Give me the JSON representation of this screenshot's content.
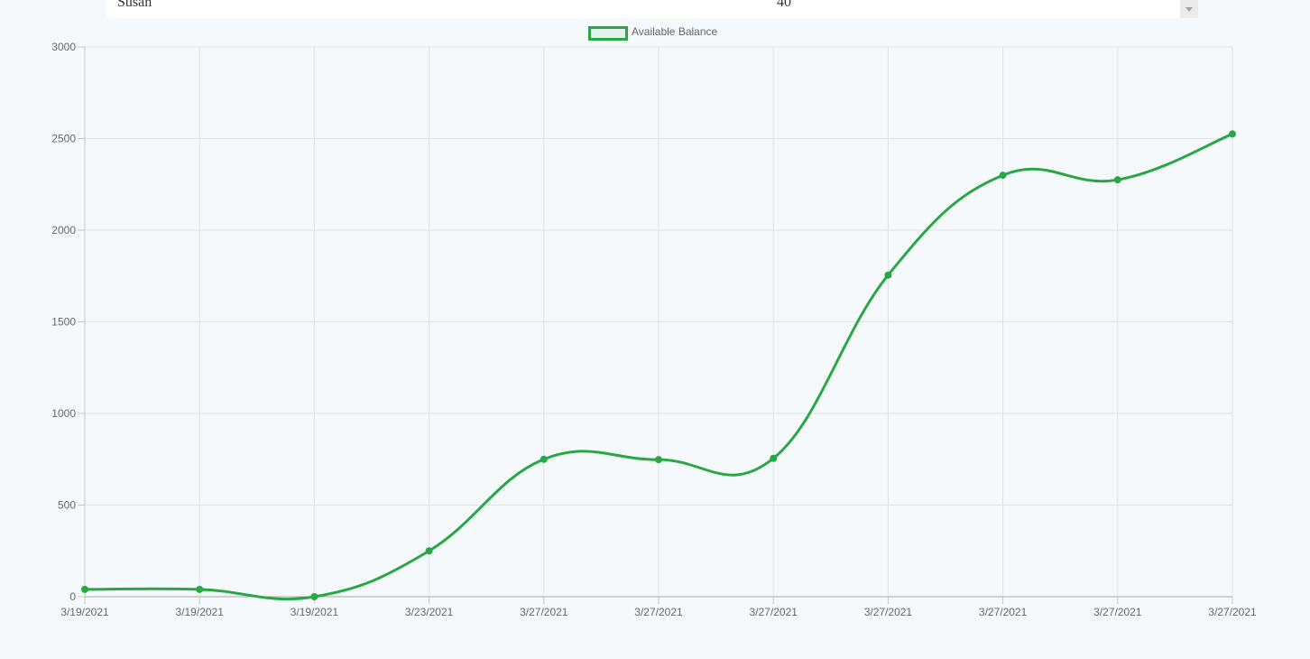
{
  "top_row": {
    "name": "Susan",
    "amount": "40"
  },
  "chart_data": {
    "type": "line",
    "title": "",
    "xlabel": "",
    "ylabel": "",
    "legend_position": "top",
    "grid": true,
    "ylim": [
      0,
      3000
    ],
    "y_ticks": [
      0,
      500,
      1000,
      1500,
      2000,
      2500,
      3000
    ],
    "categories": [
      "3/19/2021",
      "3/19/2021",
      "3/19/2021",
      "3/23/2021",
      "3/27/2021",
      "3/27/2021",
      "3/27/2021",
      "3/27/2021",
      "3/27/2021",
      "3/27/2021",
      "3/27/2021"
    ],
    "series": [
      {
        "name": "Available Balance",
        "color": "#28a745",
        "values": [
          40,
          40,
          0,
          250,
          750,
          748,
          755,
          1755,
          2300,
          2275,
          2525
        ]
      }
    ]
  }
}
